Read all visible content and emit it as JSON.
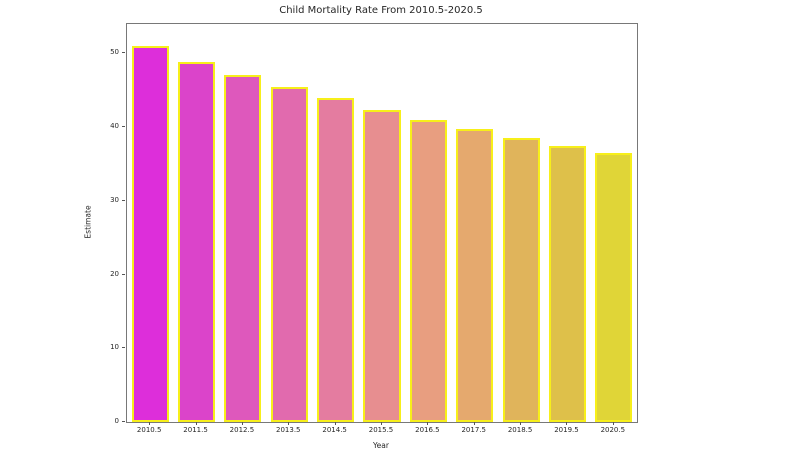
{
  "chart_data": {
    "type": "bar",
    "title": "Child Mortality Rate From 2010.5-2020.5",
    "xlabel": "Year",
    "ylabel": "Estimate",
    "categories": [
      "2010.5",
      "2011.5",
      "2012.5",
      "2013.5",
      "2014.5",
      "2015.5",
      "2016.5",
      "2017.5",
      "2018.5",
      "2019.5",
      "2020.5"
    ],
    "values": [
      51.0,
      48.8,
      47.1,
      45.4,
      43.9,
      42.4,
      41.0,
      39.8,
      38.5,
      37.4,
      36.5
    ],
    "yticks": [
      0,
      10,
      20,
      30,
      40,
      50
    ],
    "ylim": [
      0,
      54
    ],
    "grid": false,
    "legend": null,
    "bar_colors": [
      "#dd2eda",
      "#db44ca",
      "#de58bc",
      "#e16aae",
      "#e47ca0",
      "#e78e90",
      "#e89e80",
      "#e5a96e",
      "#e0b45b",
      "#dec04a",
      "#e0d537"
    ],
    "edge_color": "#f7ef1a",
    "spine_color": "#787878",
    "background_color": "#ffffff",
    "text_color": "#262626"
  }
}
